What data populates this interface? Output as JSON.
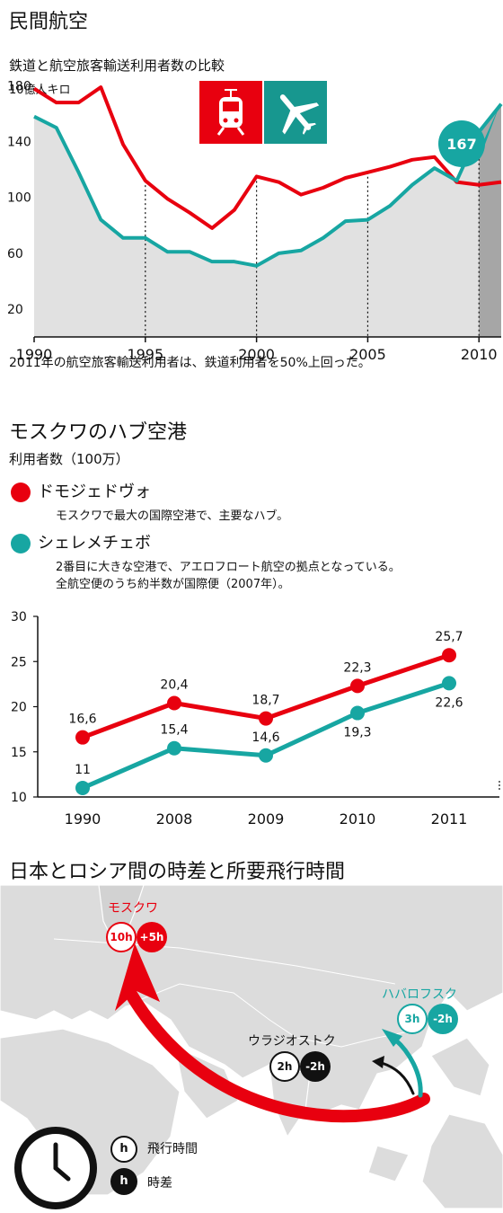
{
  "colors": {
    "rail": "#e8000f",
    "air": "#17a6a2",
    "air_dark": "#0f8f8b",
    "fill_light": "#e1e1e1",
    "fill_dark": "#a6a6a6",
    "map": "#dcdcdc"
  },
  "section1": {
    "title": "民間航空",
    "subtitle": "鉄道と航空旅客輸送利用者数の比較",
    "unit": "10億人キロ",
    "note": "2011年の航空旅客輸送利用者は、鉄道利用者を50%上回った。",
    "callout": "167",
    "icons": [
      "train-icon",
      "airplane-icon"
    ]
  },
  "section2": {
    "title": "モスクワのハブ空港",
    "unit": "利用者数（100万）",
    "airport1": {
      "name": "ドモジェドヴォ",
      "desc": "モスクワで最大の国際空港で、主要なハブ。"
    },
    "airport2": {
      "name": "シェレメチェボ",
      "desc1": "2番目に大きな空港で、アエロフロート航空の拠点となっている。",
      "desc2": "全航空便のうち約半数が国際便（2007年）。"
    }
  },
  "section3": {
    "title": "日本とロシア間の時差と所要飛行時間",
    "moscow": {
      "name": "モスクワ",
      "flight": "10h",
      "diff": "+5h"
    },
    "khabarovsk": {
      "name": "ハバロフスク",
      "flight": "3h",
      "diff": "-2h"
    },
    "vladivostok": {
      "name": "ウラジオストク",
      "flight": "2h",
      "diff": "-2h"
    },
    "legend": {
      "symbol": "h",
      "flight_label": "飛行時間",
      "diff_label": "時差"
    }
  },
  "chart_data": [
    {
      "type": "area",
      "title": "鉄道と航空旅客輸送利用者数の比較",
      "ylabel": "10億人キロ",
      "ylim": [
        0,
        190
      ],
      "xlim": [
        1990,
        2011
      ],
      "yticks": [
        20,
        60,
        100,
        140,
        180
      ],
      "xticks": [
        1990,
        1995,
        2000,
        2005,
        2010
      ],
      "x": [
        1990,
        1991,
        1992,
        1993,
        1994,
        1995,
        1996,
        1997,
        1998,
        1999,
        2000,
        2001,
        2002,
        2003,
        2004,
        2005,
        2006,
        2007,
        2008,
        2009,
        2010,
        2011
      ],
      "series": [
        {
          "key": "rail",
          "values": [
            178,
            168,
            168,
            179,
            138,
            112,
            99,
            89,
            78,
            91,
            115,
            111,
            102,
            107,
            114,
            118,
            122,
            127,
            129,
            111,
            109,
            111
          ]
        },
        {
          "key": "air",
          "values": [
            158,
            150,
            118,
            84,
            71,
            71,
            61,
            61,
            54,
            54,
            51,
            60,
            62,
            71,
            83,
            84,
            94,
            109,
            121,
            112,
            147,
            167
          ]
        }
      ],
      "grid": false
    },
    {
      "type": "line",
      "ylabel": "利用者数（100万）",
      "ylim": [
        10,
        30
      ],
      "yticks": [
        10,
        15,
        20,
        25,
        30
      ],
      "categories": [
        "1990",
        "2008",
        "2009",
        "2010",
        "2011"
      ],
      "series": [
        {
          "name": "ドモジェドヴォ",
          "values": [
            16.6,
            20.4,
            18.7,
            22.3,
            25.7
          ],
          "labels": [
            "16,6",
            "20,4",
            "18,7",
            "22,3",
            "25,7"
          ]
        },
        {
          "name": "シェレメチェボ",
          "values": [
            11,
            15.4,
            14.6,
            19.3,
            22.6
          ],
          "labels": [
            "11",
            "15,4",
            "14,6",
            "19,3",
            "22,6"
          ]
        }
      ],
      "grid": false
    }
  ]
}
